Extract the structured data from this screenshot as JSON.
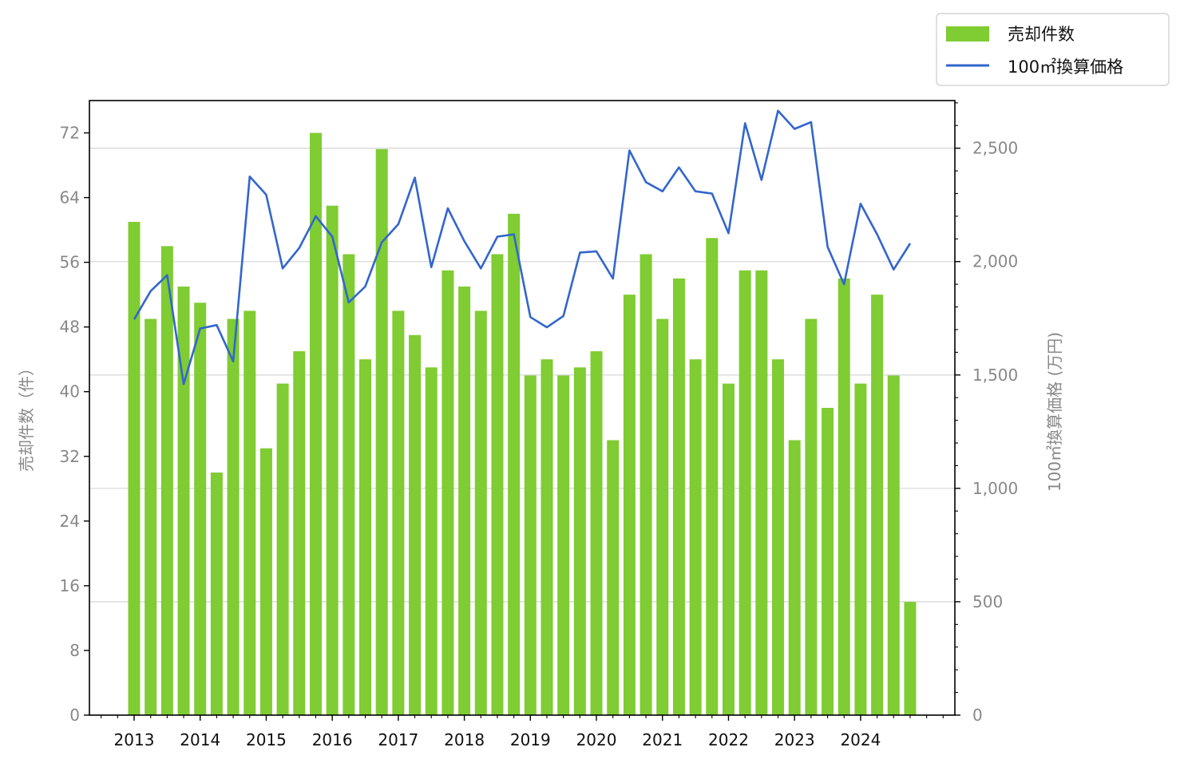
{
  "chart_data": {
    "type": "bar",
    "title": "",
    "x_tick_labels": [
      "2013",
      "2014",
      "2015",
      "2016",
      "2017",
      "2018",
      "2019",
      "2020",
      "2021",
      "2022",
      "2023",
      "2024"
    ],
    "y_left": {
      "label": "売却件数（件）",
      "range": [
        0,
        76
      ],
      "ticks": [
        0,
        8,
        16,
        24,
        32,
        40,
        48,
        56,
        64,
        72
      ],
      "tick_labels": [
        "0",
        "8",
        "16",
        "24",
        "32",
        "40",
        "48",
        "56",
        "64",
        "72"
      ]
    },
    "y_right": {
      "label": "100㎡換算価格 (万円)",
      "range": [
        0,
        2710
      ],
      "ticks": [
        0,
        500,
        1000,
        1500,
        2000,
        2500
      ],
      "tick_labels": [
        "0",
        "500",
        "1,000",
        "1,500",
        "2,000",
        "2,500"
      ]
    },
    "grid": "horizontal (right axis)",
    "legend": {
      "position": "top-right"
    },
    "x_start_year": 2013,
    "quarters_per_year": 4,
    "series": [
      {
        "name": "売却件数",
        "type": "bar",
        "axis": "left",
        "color": "#7fcc33",
        "values": [
          61,
          49,
          58,
          53,
          51,
          30,
          49,
          50,
          33,
          41,
          45,
          72,
          63,
          57,
          44,
          70,
          50,
          47,
          43,
          55,
          53,
          50,
          57,
          62,
          42,
          44,
          42,
          43,
          45,
          34,
          52,
          57,
          49,
          54,
          44,
          59,
          41,
          55,
          55,
          44,
          34,
          49,
          38,
          54,
          41,
          52,
          42,
          14
        ]
      },
      {
        "name": "100㎡換算価格",
        "type": "line",
        "axis": "right",
        "color": "#3366cc",
        "values": [
          1745,
          1870,
          1940,
          1460,
          1705,
          1720,
          1560,
          2375,
          2295,
          1970,
          2060,
          2200,
          2110,
          1820,
          1890,
          2085,
          2165,
          2370,
          1975,
          2235,
          2090,
          1970,
          2110,
          2120,
          1755,
          1710,
          1760,
          2040,
          2045,
          1925,
          2490,
          2350,
          2310,
          2415,
          2310,
          2300,
          2125,
          2610,
          2360,
          2665,
          2585,
          2615,
          2065,
          1900,
          2255,
          2120,
          1965,
          2080
        ]
      }
    ]
  }
}
